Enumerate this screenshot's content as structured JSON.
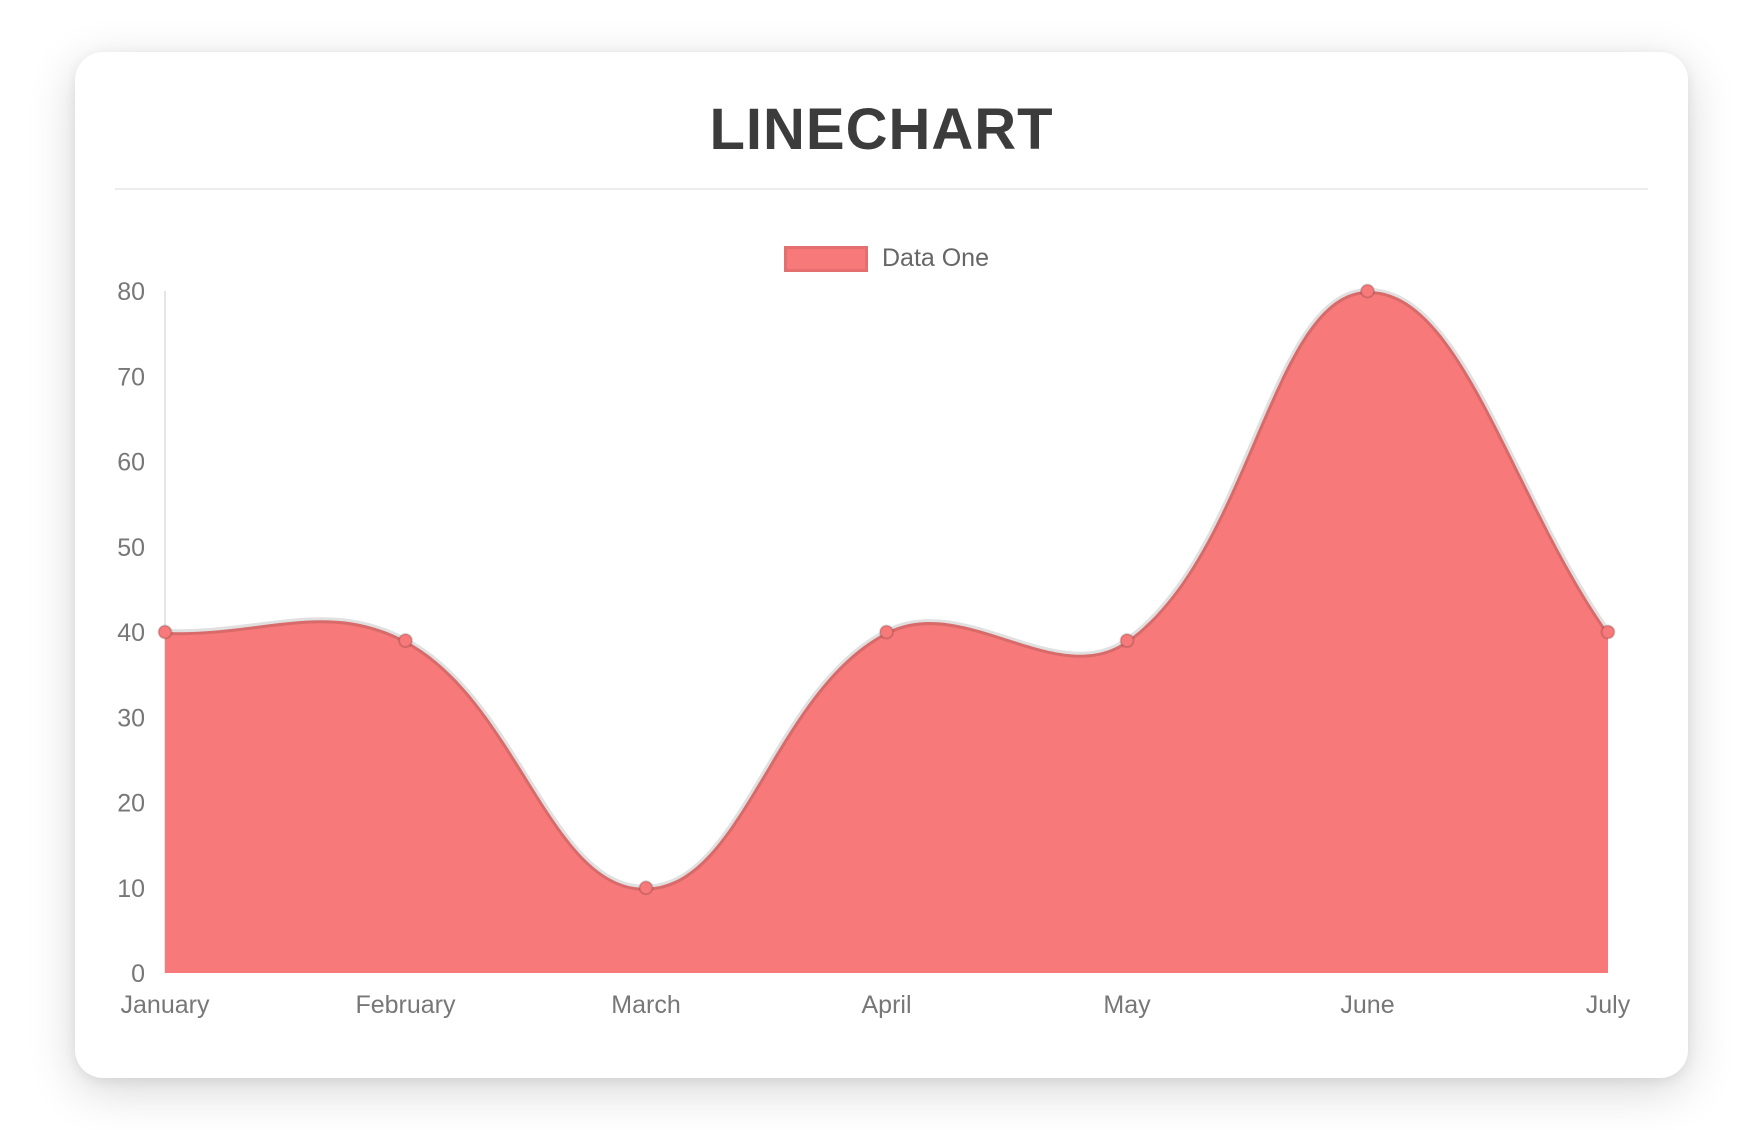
{
  "header": {
    "title": "LINECHART",
    "title_color": "#3c3c3c"
  },
  "legend": {
    "items": [
      {
        "label": "Data One",
        "swatch_color": "#f87979"
      }
    ]
  },
  "chart_data": {
    "type": "area",
    "title": "LINECHART",
    "categories": [
      "January",
      "February",
      "March",
      "April",
      "May",
      "June",
      "July"
    ],
    "series": [
      {
        "name": "Data One",
        "values": [
          40,
          39,
          10,
          40,
          39,
          80,
          40
        ]
      }
    ],
    "xlabel": "",
    "ylabel": "",
    "ylim": [
      0,
      80
    ],
    "yticks": [
      0,
      10,
      20,
      30,
      40,
      50,
      60,
      70,
      80
    ],
    "grid": false,
    "smooth": true,
    "line_tension": 0.4,
    "legend_position": "top-center",
    "colors": {
      "fill": "#f87979",
      "line": "rgba(0,0,0,0.12)",
      "point_fill": "#f87979",
      "point_border": "rgba(0,0,0,0.15)",
      "axis_line": "rgba(0,0,0,0.10)",
      "tick_label": "#777777"
    }
  }
}
